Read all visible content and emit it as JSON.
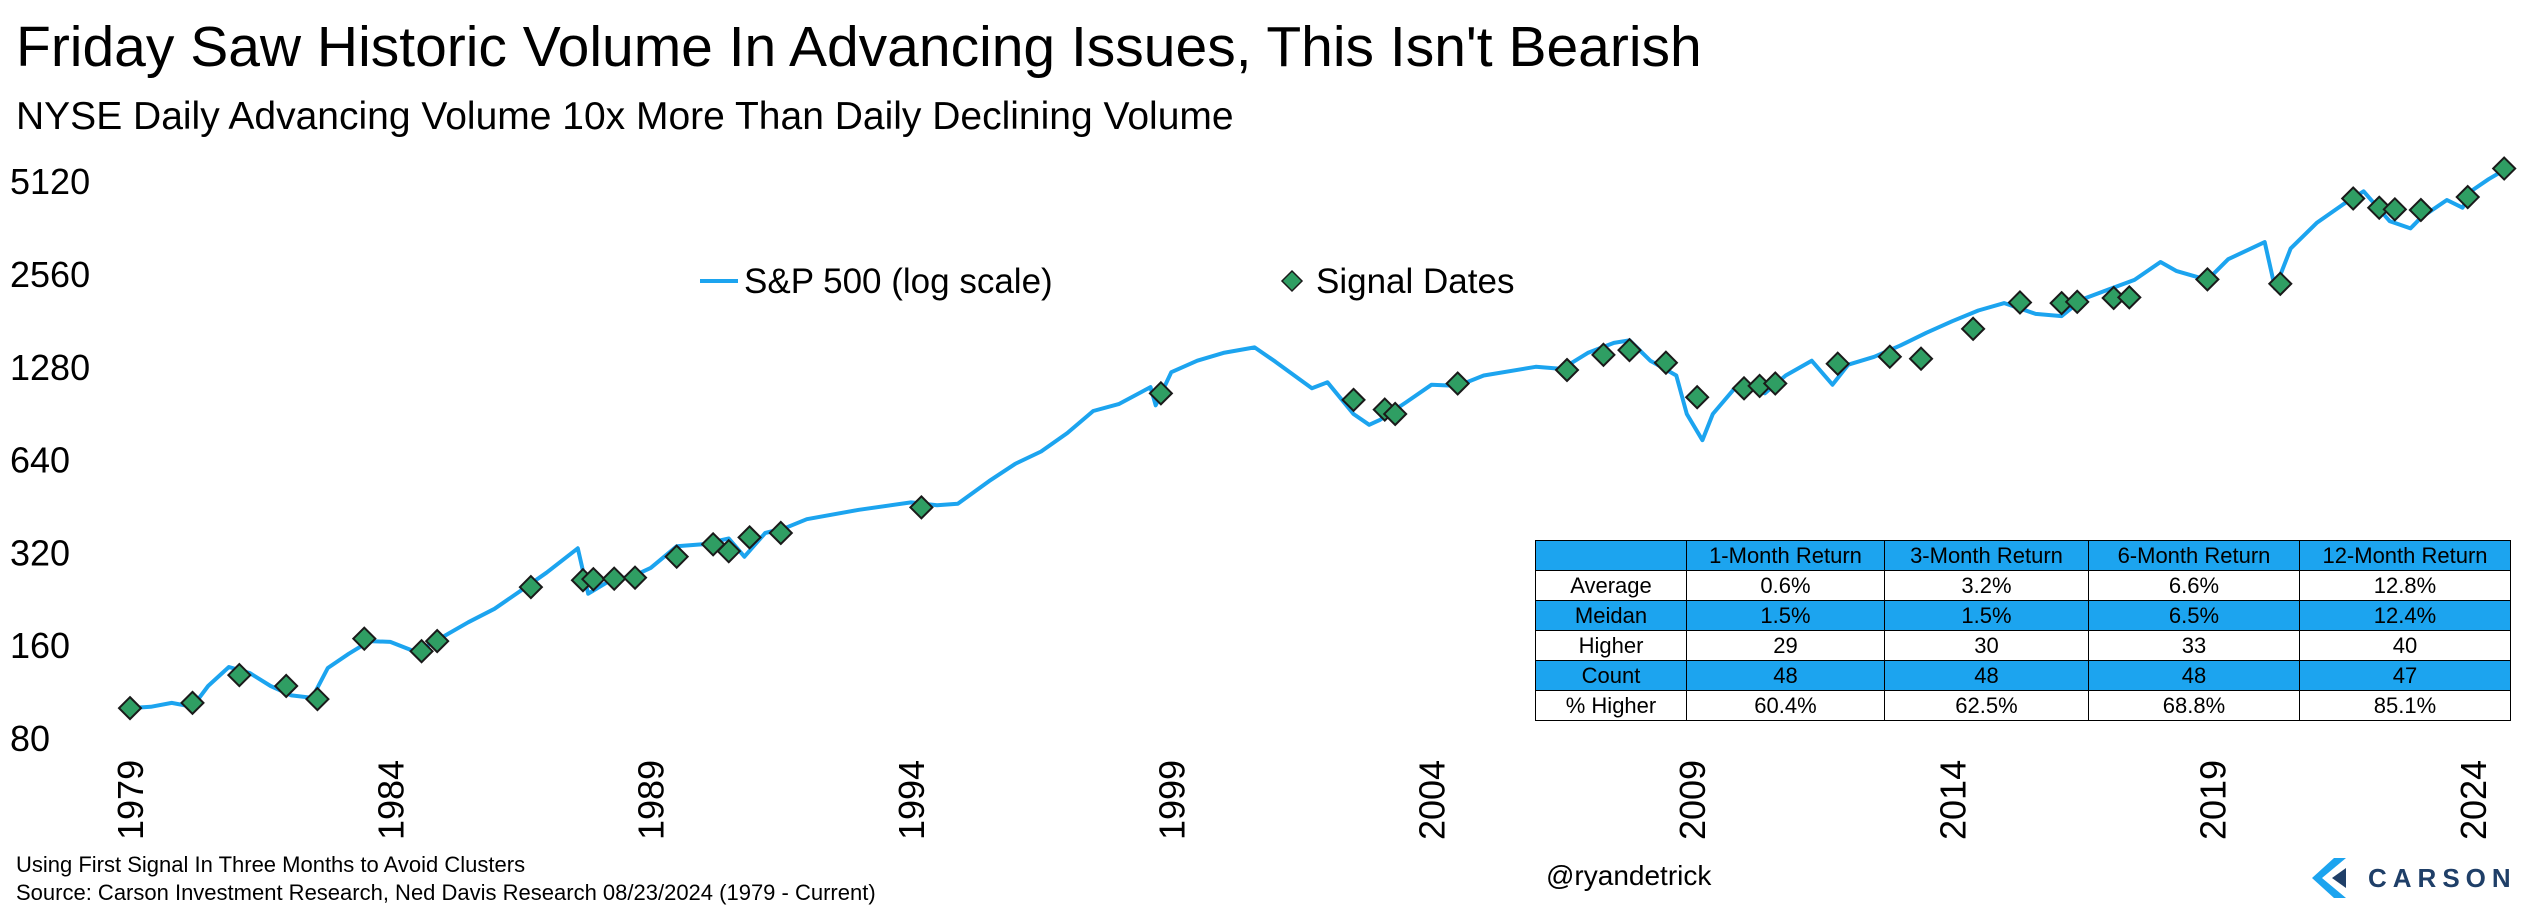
{
  "title": "Friday Saw Historic Volume In Advancing Issues, This Isn't Bearish",
  "subtitle": "NYSE Daily Advancing Volume 10x More Than Daily Declining Volume",
  "footnotes": {
    "line1": "Using First Signal In Three Months to Avoid Clusters",
    "line2": "Source: Carson Investment Research, Ned Davis Research 08/23/2024 (1979 - Current)"
  },
  "handle": "@ryandetrick",
  "brand": {
    "name": "CARSON",
    "color": "#1f3f68",
    "icon": "carson-chevron-logo"
  },
  "colors": {
    "line": "#1ca4ef",
    "marker": "#2f9e63",
    "table_header": "#1ca4ef"
  },
  "chart_data": {
    "type": "line",
    "y_scale": "log",
    "ylim": [
      80,
      6000
    ],
    "xlim": [
      1979.0,
      2025.0
    ],
    "y_ticks": [
      80,
      160,
      320,
      640,
      1280,
      2560,
      5120
    ],
    "x_ticks": [
      1979,
      1984,
      1989,
      1994,
      1999,
      2004,
      2009,
      2014,
      2019,
      2024
    ],
    "legend": {
      "position": "top-center",
      "entries": [
        "S&P 500 (log scale)",
        "Signal Dates"
      ]
    },
    "series": [
      {
        "name": "S&P 500 (log scale)",
        "kind": "line",
        "points": [
          [
            1979.0,
            100
          ],
          [
            1979.4,
            101
          ],
          [
            1979.8,
            104
          ],
          [
            1980.2,
            101
          ],
          [
            1980.5,
            118
          ],
          [
            1980.9,
            136
          ],
          [
            1981.3,
            130
          ],
          [
            1981.7,
            118
          ],
          [
            1982.1,
            110
          ],
          [
            1982.5,
            108
          ],
          [
            1982.8,
            135
          ],
          [
            1983.2,
            150
          ],
          [
            1983.6,
            165
          ],
          [
            1984.0,
            164
          ],
          [
            1984.5,
            152
          ],
          [
            1985.0,
            170
          ],
          [
            1985.5,
            190
          ],
          [
            1986.0,
            210
          ],
          [
            1986.5,
            240
          ],
          [
            1987.0,
            275
          ],
          [
            1987.6,
            330
          ],
          [
            1987.8,
            235
          ],
          [
            1988.2,
            258
          ],
          [
            1988.7,
            270
          ],
          [
            1989.0,
            285
          ],
          [
            1989.5,
            335
          ],
          [
            1990.0,
            340
          ],
          [
            1990.5,
            355
          ],
          [
            1990.8,
            310
          ],
          [
            1991.2,
            370
          ],
          [
            1991.6,
            385
          ],
          [
            1992.0,
            410
          ],
          [
            1993.0,
            440
          ],
          [
            1994.0,
            465
          ],
          [
            1994.5,
            455
          ],
          [
            1994.9,
            460
          ],
          [
            1995.5,
            545
          ],
          [
            1996.0,
            620
          ],
          [
            1996.5,
            680
          ],
          [
            1997.0,
            780
          ],
          [
            1997.5,
            920
          ],
          [
            1998.0,
            970
          ],
          [
            1998.6,
            1100
          ],
          [
            1998.7,
            960
          ],
          [
            1999.0,
            1230
          ],
          [
            1999.5,
            1340
          ],
          [
            2000.0,
            1420
          ],
          [
            2000.6,
            1480
          ],
          [
            2001.0,
            1330
          ],
          [
            2001.7,
            1090
          ],
          [
            2002.0,
            1140
          ],
          [
            2002.5,
            900
          ],
          [
            2002.8,
            830
          ],
          [
            2003.0,
            860
          ],
          [
            2003.5,
            980
          ],
          [
            2004.0,
            1120
          ],
          [
            2004.5,
            1110
          ],
          [
            2005.0,
            1200
          ],
          [
            2006.0,
            1280
          ],
          [
            2006.5,
            1260
          ],
          [
            2007.0,
            1420
          ],
          [
            2007.5,
            1530
          ],
          [
            2007.8,
            1560
          ],
          [
            2008.2,
            1340
          ],
          [
            2008.7,
            1200
          ],
          [
            2008.9,
            900
          ],
          [
            2009.2,
            740
          ],
          [
            2009.4,
            900
          ],
          [
            2009.8,
            1080
          ],
          [
            2010.0,
            1130
          ],
          [
            2010.4,
            1050
          ],
          [
            2010.8,
            1200
          ],
          [
            2011.3,
            1340
          ],
          [
            2011.7,
            1120
          ],
          [
            2012.0,
            1300
          ],
          [
            2012.5,
            1380
          ],
          [
            2013.0,
            1500
          ],
          [
            2013.5,
            1650
          ],
          [
            2014.0,
            1800
          ],
          [
            2014.5,
            1950
          ],
          [
            2015.0,
            2060
          ],
          [
            2015.6,
            1900
          ],
          [
            2016.1,
            1870
          ],
          [
            2016.5,
            2120
          ],
          [
            2017.0,
            2280
          ],
          [
            2017.5,
            2450
          ],
          [
            2018.0,
            2800
          ],
          [
            2018.3,
            2620
          ],
          [
            2018.9,
            2450
          ],
          [
            2019.3,
            2860
          ],
          [
            2020.0,
            3250
          ],
          [
            2020.2,
            2300
          ],
          [
            2020.5,
            3100
          ],
          [
            2021.0,
            3750
          ],
          [
            2021.5,
            4300
          ],
          [
            2021.9,
            4750
          ],
          [
            2022.4,
            3800
          ],
          [
            2022.8,
            3600
          ],
          [
            2023.0,
            3900
          ],
          [
            2023.5,
            4450
          ],
          [
            2023.8,
            4200
          ],
          [
            2024.0,
            4800
          ],
          [
            2024.3,
            5200
          ],
          [
            2024.65,
            5630
          ]
        ]
      },
      {
        "name": "Signal Dates",
        "kind": "marker",
        "points": [
          [
            1979.0,
            100
          ],
          [
            1980.2,
            104
          ],
          [
            1981.1,
            128
          ],
          [
            1982.0,
            118
          ],
          [
            1982.6,
            107
          ],
          [
            1983.5,
            168
          ],
          [
            1984.6,
            153
          ],
          [
            1984.9,
            165
          ],
          [
            1986.7,
            247
          ],
          [
            1987.7,
            260
          ],
          [
            1987.9,
            262
          ],
          [
            1988.3,
            263
          ],
          [
            1988.7,
            265
          ],
          [
            1989.5,
            310
          ],
          [
            1990.2,
            340
          ],
          [
            1990.5,
            323
          ],
          [
            1990.9,
            358
          ],
          [
            1991.5,
            370
          ],
          [
            1994.2,
            448
          ],
          [
            1998.8,
            1050
          ],
          [
            2002.5,
            1000
          ],
          [
            2003.1,
            930
          ],
          [
            2003.3,
            900
          ],
          [
            2004.5,
            1130
          ],
          [
            2006.6,
            1250
          ],
          [
            2007.3,
            1400
          ],
          [
            2007.8,
            1450
          ],
          [
            2008.5,
            1320
          ],
          [
            2009.1,
            1020
          ],
          [
            2010.0,
            1090
          ],
          [
            2010.3,
            1110
          ],
          [
            2010.6,
            1130
          ],
          [
            2011.8,
            1310
          ],
          [
            2012.8,
            1380
          ],
          [
            2013.4,
            1360
          ],
          [
            2014.4,
            1700
          ],
          [
            2015.3,
            2070
          ],
          [
            2016.1,
            2060
          ],
          [
            2016.4,
            2080
          ],
          [
            2017.1,
            2140
          ],
          [
            2017.4,
            2150
          ],
          [
            2018.9,
            2460
          ],
          [
            2020.3,
            2380
          ],
          [
            2021.7,
            4500
          ],
          [
            2022.2,
            4200
          ],
          [
            2022.5,
            4150
          ],
          [
            2023.0,
            4130
          ],
          [
            2023.9,
            4550
          ],
          [
            2024.6,
            5630
          ]
        ]
      }
    ],
    "table": {
      "columns": [
        "",
        "1-Month Return",
        "3-Month Return",
        "6-Month Return",
        "12-Month Return"
      ],
      "rows": [
        [
          "Average",
          "0.6%",
          "3.2%",
          "6.6%",
          "12.8%"
        ],
        [
          "Meidan",
          "1.5%",
          "1.5%",
          "6.5%",
          "12.4%"
        ],
        [
          "Higher",
          "29",
          "30",
          "33",
          "40"
        ],
        [
          "Count",
          "48",
          "48",
          "48",
          "47"
        ],
        [
          "% Higher",
          "60.4%",
          "62.5%",
          "68.8%",
          "85.1%"
        ]
      ]
    }
  }
}
